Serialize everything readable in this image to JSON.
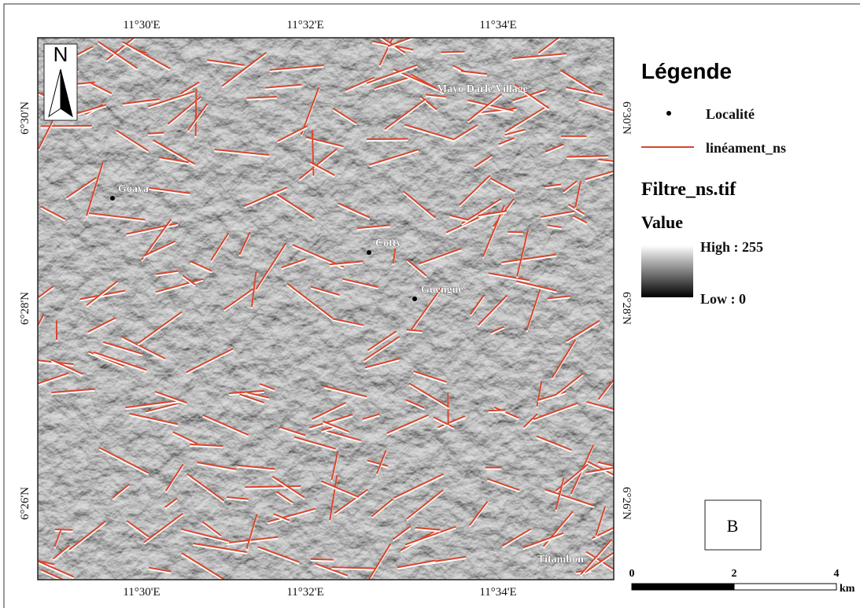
{
  "map": {
    "north": "N",
    "longitude_labels": [
      "11°30'E",
      "11°32'E",
      "11°34'E"
    ],
    "latitude_labels": [
      "6°30'N",
      "6°28'N",
      "6°26'N"
    ],
    "localities": [
      "Mayo Darlé Village",
      "Goaya",
      "Cotty",
      "Guengué",
      "Titambon"
    ],
    "legend": {
      "title": "Légende",
      "point": "Localité",
      "line": "linéament_ns",
      "raster": "Filtre_ns.tif",
      "value": "Value",
      "high": "High : 255",
      "low": "Low : 0"
    },
    "scale": {
      "labels": [
        "0",
        "2",
        "4"
      ],
      "unit": "km"
    },
    "panel": "B"
  }
}
